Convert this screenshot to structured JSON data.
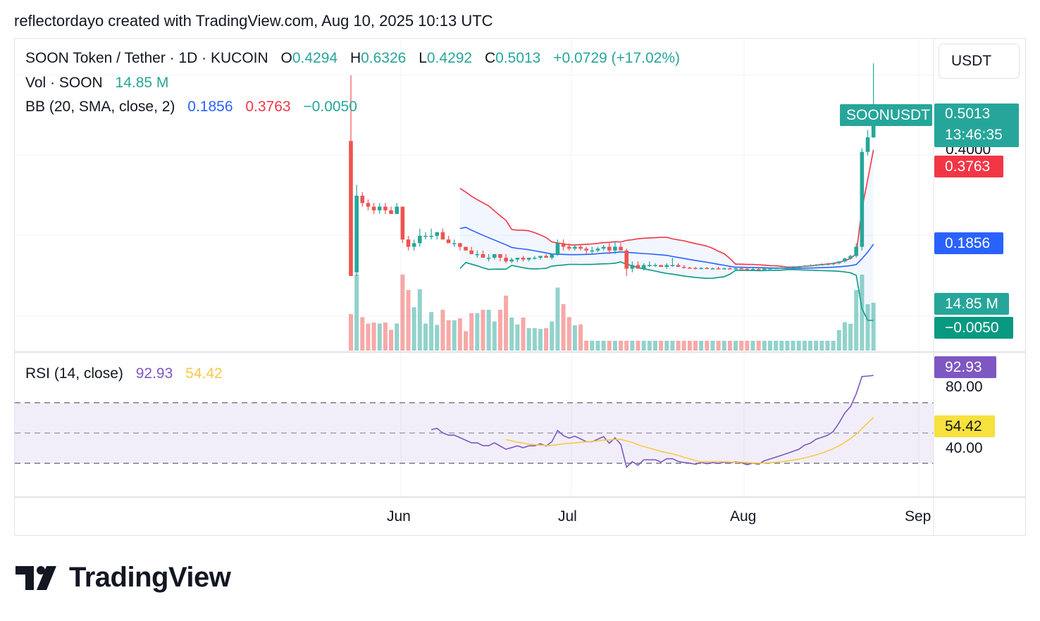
{
  "header": {
    "attribution": "reflectordayo created with TradingView.com, Aug 10, 2025 10:13 UTC"
  },
  "legend": {
    "symbol": "SOON Token / Tether · 1D · KUCOIN",
    "o_label": "O",
    "o_value": "0.4294",
    "h_label": "H",
    "h_value": "0.6326",
    "l_label": "L",
    "l_value": "0.4292",
    "c_label": "C",
    "c_value": "0.5013",
    "change": "+0.0729 (+17.02%)",
    "vol_label": "Vol · SOON",
    "vol_value": "14.85 M",
    "bb_label": "BB (20, SMA, close, 2)",
    "bb_basis": "0.1856",
    "bb_upper": "0.3763",
    "bb_lower": "−0.0050",
    "rsi_label": "RSI (14, close)",
    "rsi_value": "92.93",
    "rsi_ma": "54.42"
  },
  "price_scale": {
    "currency": "USDT",
    "symbol_tag": "SOONUSDT",
    "last_price": "0.5013",
    "countdown": "13:46:35",
    "hidden_tick": "0.4000",
    "bb_upper": "0.3763",
    "bb_basis": "0.1856",
    "volume": "14.85 M",
    "bb_lower": "−0.0050",
    "rsi_value": "92.93",
    "rsi_80": "80.00",
    "rsi_ma": "54.42",
    "rsi_40": "40.00"
  },
  "time_axis": {
    "labels": [
      "Jun",
      "Jul",
      "Aug",
      "Sep"
    ]
  },
  "colors": {
    "up": "#26a69a",
    "down": "#ef5350",
    "bb_upper": "#f23645",
    "bb_basis": "#2962ff",
    "bb_lower": "#089981",
    "rsi": "#7e57c2",
    "rsi_ma": "#f7c948",
    "label_up": "#26a69a",
    "label_down": "#f23645",
    "label_blue": "#2962ff"
  },
  "logo": {
    "text": "TradingView"
  },
  "chart_data": {
    "type": "candlestick",
    "start_date": "2025-05-23",
    "price_range": [
      -0.0,
      0.65
    ],
    "candles": [
      [
        0.42,
        0.6,
        0.05,
        0.05
      ],
      [
        0.06,
        0.3,
        0.05,
        0.27
      ],
      [
        0.27,
        0.28,
        0.24,
        0.25
      ],
      [
        0.25,
        0.26,
        0.23,
        0.24
      ],
      [
        0.24,
        0.25,
        0.22,
        0.23
      ],
      [
        0.23,
        0.25,
        0.22,
        0.24
      ],
      [
        0.24,
        0.25,
        0.22,
        0.23
      ],
      [
        0.23,
        0.24,
        0.22,
        0.22
      ],
      [
        0.22,
        0.25,
        0.22,
        0.24
      ],
      [
        0.24,
        0.24,
        0.14,
        0.15
      ],
      [
        0.15,
        0.16,
        0.12,
        0.13
      ],
      [
        0.13,
        0.15,
        0.12,
        0.14
      ],
      [
        0.14,
        0.18,
        0.13,
        0.16
      ],
      [
        0.16,
        0.17,
        0.15,
        0.16
      ],
      [
        0.16,
        0.18,
        0.15,
        0.16
      ],
      [
        0.16,
        0.17,
        0.15,
        0.17
      ],
      [
        0.17,
        0.18,
        0.15,
        0.15
      ],
      [
        0.15,
        0.16,
        0.14,
        0.14
      ],
      [
        0.14,
        0.15,
        0.13,
        0.14
      ],
      [
        0.14,
        0.14,
        0.12,
        0.13
      ],
      [
        0.13,
        0.13,
        0.12,
        0.12
      ],
      [
        0.12,
        0.13,
        0.11,
        0.11
      ],
      [
        0.11,
        0.12,
        0.1,
        0.11
      ],
      [
        0.11,
        0.12,
        0.1,
        0.1
      ],
      [
        0.1,
        0.11,
        0.09,
        0.1
      ],
      [
        0.1,
        0.11,
        0.095,
        0.11
      ],
      [
        0.11,
        0.11,
        0.09,
        0.1
      ],
      [
        0.1,
        0.11,
        0.085,
        0.09
      ],
      [
        0.09,
        0.1,
        0.085,
        0.095
      ],
      [
        0.095,
        0.1,
        0.088,
        0.1
      ],
      [
        0.1,
        0.105,
        0.09,
        0.095
      ],
      [
        0.095,
        0.1,
        0.09,
        0.1
      ],
      [
        0.1,
        0.105,
        0.095,
        0.1
      ],
      [
        0.1,
        0.105,
        0.095,
        0.105
      ],
      [
        0.105,
        0.11,
        0.1,
        0.1
      ],
      [
        0.1,
        0.11,
        0.095,
        0.11
      ],
      [
        0.11,
        0.15,
        0.105,
        0.14
      ],
      [
        0.14,
        0.15,
        0.12,
        0.13
      ],
      [
        0.13,
        0.14,
        0.12,
        0.125
      ],
      [
        0.125,
        0.135,
        0.12,
        0.13
      ],
      [
        0.13,
        0.135,
        0.12,
        0.125
      ],
      [
        0.125,
        0.13,
        0.11,
        0.12
      ],
      [
        0.12,
        0.13,
        0.11,
        0.12
      ],
      [
        0.12,
        0.13,
        0.115,
        0.125
      ],
      [
        0.125,
        0.135,
        0.12,
        0.13
      ],
      [
        0.13,
        0.14,
        0.11,
        0.12
      ],
      [
        0.12,
        0.145,
        0.11,
        0.13
      ],
      [
        0.13,
        0.14,
        0.12,
        0.12
      ],
      [
        0.12,
        0.125,
        0.05,
        0.07
      ],
      [
        0.07,
        0.09,
        0.06,
        0.08
      ],
      [
        0.08,
        0.09,
        0.07,
        0.07
      ],
      [
        0.07,
        0.085,
        0.065,
        0.08
      ],
      [
        0.08,
        0.09,
        0.075,
        0.08
      ],
      [
        0.08,
        0.085,
        0.075,
        0.08
      ],
      [
        0.08,
        0.08,
        0.075,
        0.075
      ],
      [
        0.075,
        0.085,
        0.07,
        0.08
      ],
      [
        0.08,
        0.1,
        0.075,
        0.08
      ],
      [
        0.08,
        0.085,
        0.075,
        0.075
      ],
      [
        0.075,
        0.08,
        0.07,
        0.073
      ],
      [
        0.073,
        0.075,
        0.07,
        0.072
      ],
      [
        0.072,
        0.075,
        0.068,
        0.07
      ],
      [
        0.07,
        0.074,
        0.068,
        0.072
      ],
      [
        0.072,
        0.075,
        0.069,
        0.07
      ],
      [
        0.07,
        0.073,
        0.068,
        0.071
      ],
      [
        0.071,
        0.075,
        0.069,
        0.07
      ],
      [
        0.07,
        0.073,
        0.068,
        0.071
      ],
      [
        0.071,
        0.074,
        0.068,
        0.07
      ],
      [
        0.07,
        0.073,
        0.068,
        0.071
      ],
      [
        0.071,
        0.074,
        0.069,
        0.07
      ],
      [
        0.07,
        0.074,
        0.065,
        0.068
      ],
      [
        0.068,
        0.072,
        0.064,
        0.069
      ],
      [
        0.069,
        0.072,
        0.066,
        0.068
      ],
      [
        0.068,
        0.075,
        0.066,
        0.07
      ],
      [
        0.07,
        0.073,
        0.068,
        0.071
      ],
      [
        0.071,
        0.074,
        0.069,
        0.072
      ],
      [
        0.072,
        0.075,
        0.07,
        0.073
      ],
      [
        0.073,
        0.076,
        0.071,
        0.074
      ],
      [
        0.074,
        0.077,
        0.072,
        0.075
      ],
      [
        0.075,
        0.078,
        0.073,
        0.076
      ],
      [
        0.076,
        0.08,
        0.074,
        0.078
      ],
      [
        0.078,
        0.082,
        0.076,
        0.079
      ],
      [
        0.079,
        0.083,
        0.077,
        0.081
      ],
      [
        0.081,
        0.085,
        0.079,
        0.082
      ],
      [
        0.082,
        0.086,
        0.08,
        0.083
      ],
      [
        0.083,
        0.087,
        0.08,
        0.085
      ],
      [
        0.085,
        0.09,
        0.082,
        0.09
      ],
      [
        0.09,
        0.1,
        0.087,
        0.098
      ],
      [
        0.098,
        0.108,
        0.095,
        0.105
      ],
      [
        0.105,
        0.14,
        0.1,
        0.13
      ],
      [
        0.13,
        0.4,
        0.12,
        0.39
      ],
      [
        0.39,
        0.45,
        0.38,
        0.43
      ],
      [
        0.4294,
        0.6326,
        0.4292,
        0.5013
      ]
    ],
    "volume_units": "M",
    "rsi": {
      "ob": 80,
      "mid": 60,
      "os": 40
    }
  }
}
